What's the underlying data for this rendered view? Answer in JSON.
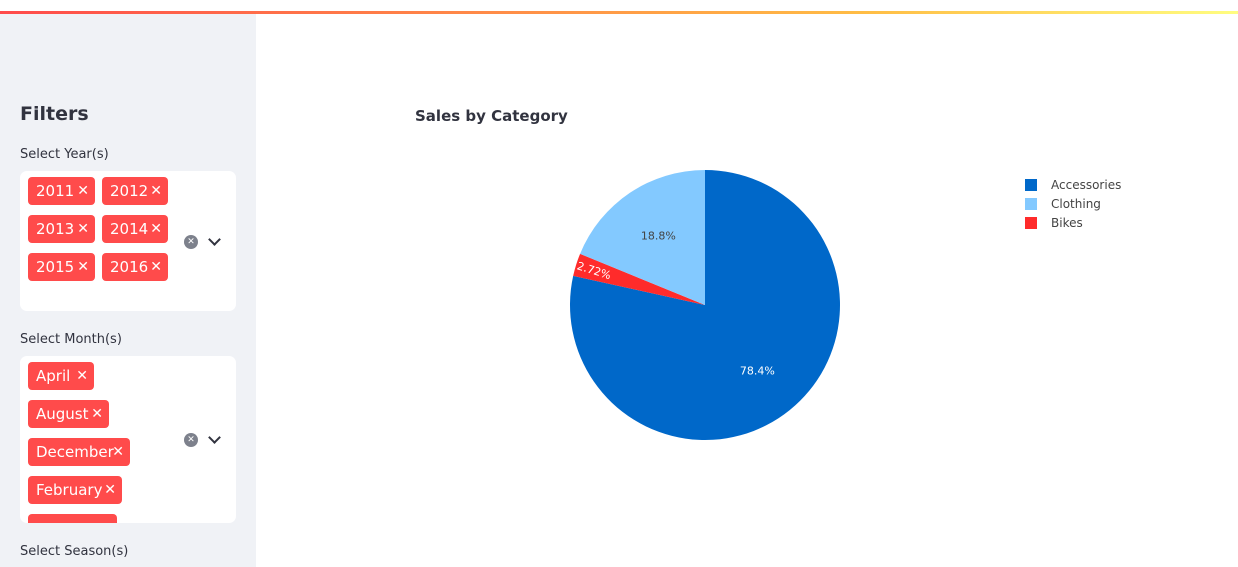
{
  "sidebar": {
    "title": "Filters",
    "years": {
      "label": "Select Year(s)",
      "tags": [
        "2011",
        "2012",
        "2013",
        "2014",
        "2015",
        "2016"
      ]
    },
    "months": {
      "label": "Select Month(s)",
      "tags": [
        "April",
        "August",
        "December",
        "February",
        ""
      ]
    },
    "seasons": {
      "label": "Select Season(s)"
    }
  },
  "chart_data": {
    "type": "pie",
    "title": "Sales by Category",
    "slices": [
      {
        "label": "Accessories",
        "value": 78.4,
        "text": "78.4%",
        "color": "#0068c9"
      },
      {
        "label": "Bikes",
        "value": 2.72,
        "text": "2.72%",
        "color": "#ff2b2b"
      },
      {
        "label": "Clothing",
        "value": 18.8,
        "text": "18.8%",
        "color": "#83c9ff"
      }
    ],
    "legend": [
      "Accessories",
      "Clothing",
      "Bikes"
    ],
    "legend_colors": [
      "#0068c9",
      "#83c9ff",
      "#ff2b2b"
    ],
    "legend_position": "top-right"
  }
}
